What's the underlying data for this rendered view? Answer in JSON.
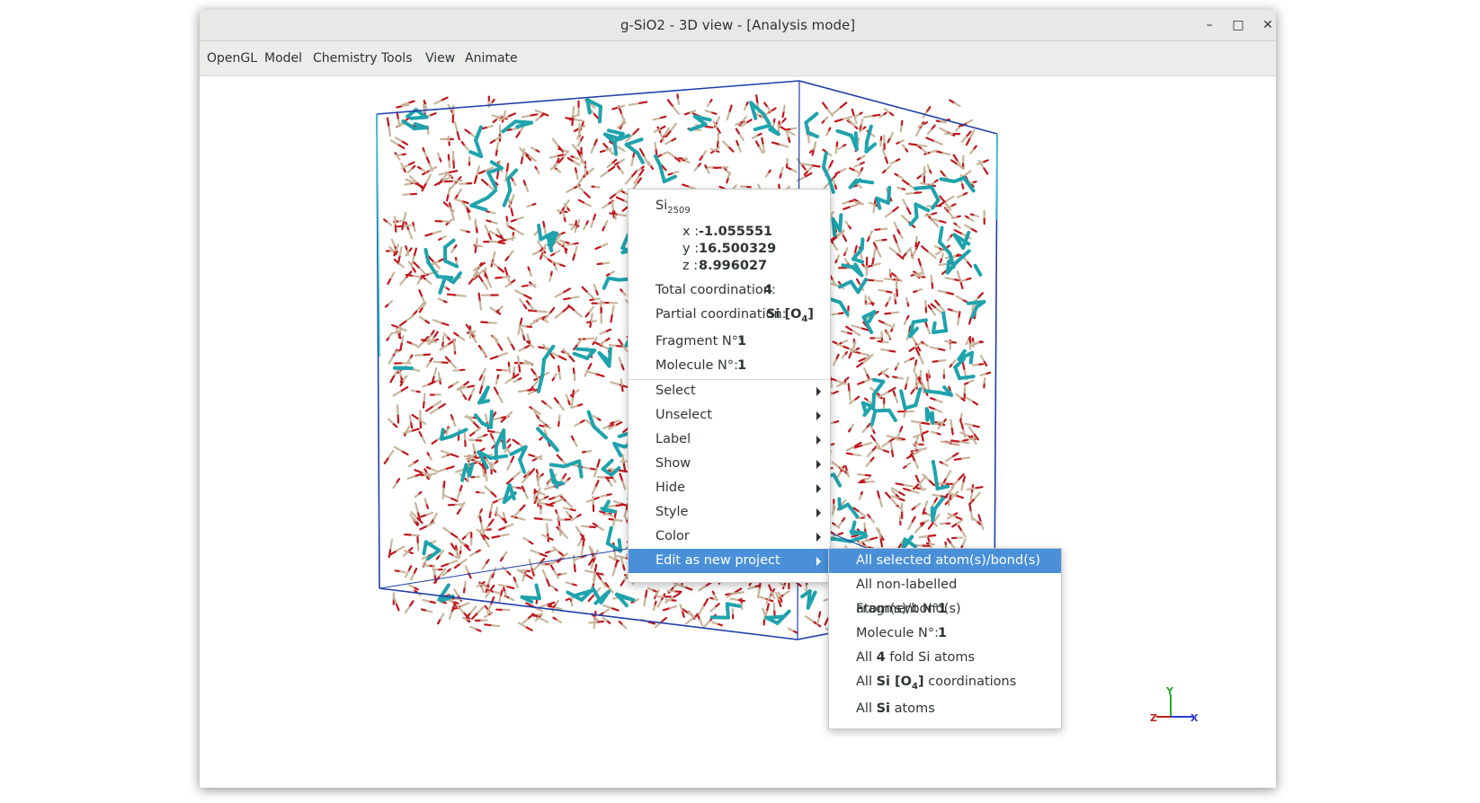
{
  "window": {
    "title": "g-SiO2 - 3D view - [Analysis mode]",
    "minimize_label": "–",
    "maximize_label": "□",
    "close_label": "✕"
  },
  "menubar": [
    "OpenGL",
    "Model",
    "Chemistry",
    "Tools",
    "View",
    "Animate"
  ],
  "colors": {
    "titlebar": "#e8e8e7",
    "menubar": "#ececeb",
    "cell_edge": "#1f3ea8",
    "oxygen_bond": "#c0151b",
    "silicon_bond": "#c7b49a",
    "highlight_bond": "#1fa3ad",
    "menu_selected": "#4a90d9"
  },
  "atom_popup": {
    "element": "Si",
    "index": "2509",
    "x_label": "x :",
    "x_value": "-1.055551",
    "y_label": "y :",
    "y_value": "16.500329",
    "z_label": "z :",
    "z_value": "8.996027",
    "total_coordination_label": "Total coordination:",
    "total_coordination_value": "4",
    "partial_coordination_label": "Partial coordination:",
    "partial_coordination_prefix": "Si [O",
    "partial_coordination_sub": "4",
    "partial_coordination_suffix": "]",
    "fragment_label": "Fragment N°:",
    "fragment_value": "1",
    "molecule_label": "Molecule N°:",
    "molecule_value": "1",
    "items": [
      "Select",
      "Unselect",
      "Label",
      "Show",
      "Hide",
      "Style",
      "Color",
      "Edit as new project"
    ]
  },
  "submenu": {
    "all_selected": "All selected atom(s)/bond(s)",
    "all_non_labelled": "All non-labelled atom(s)/bond(s)",
    "fragment_label": "Fragment N°:",
    "fragment_value": "1",
    "molecule_label": "Molecule N°:",
    "molecule_value": "1",
    "fold_prefix": "All",
    "fold_value": "4",
    "fold_suffix": "fold Si atoms",
    "coord_prefix": "All",
    "coord_bold": "Si [O",
    "coord_sub": "4",
    "coord_bold_end": "]",
    "coord_suffix": "coordinations",
    "atoms_prefix": "All",
    "atoms_bold": "Si",
    "atoms_suffix": "atoms"
  },
  "axes": {
    "x": "X",
    "y": "Y",
    "z": "Z"
  }
}
